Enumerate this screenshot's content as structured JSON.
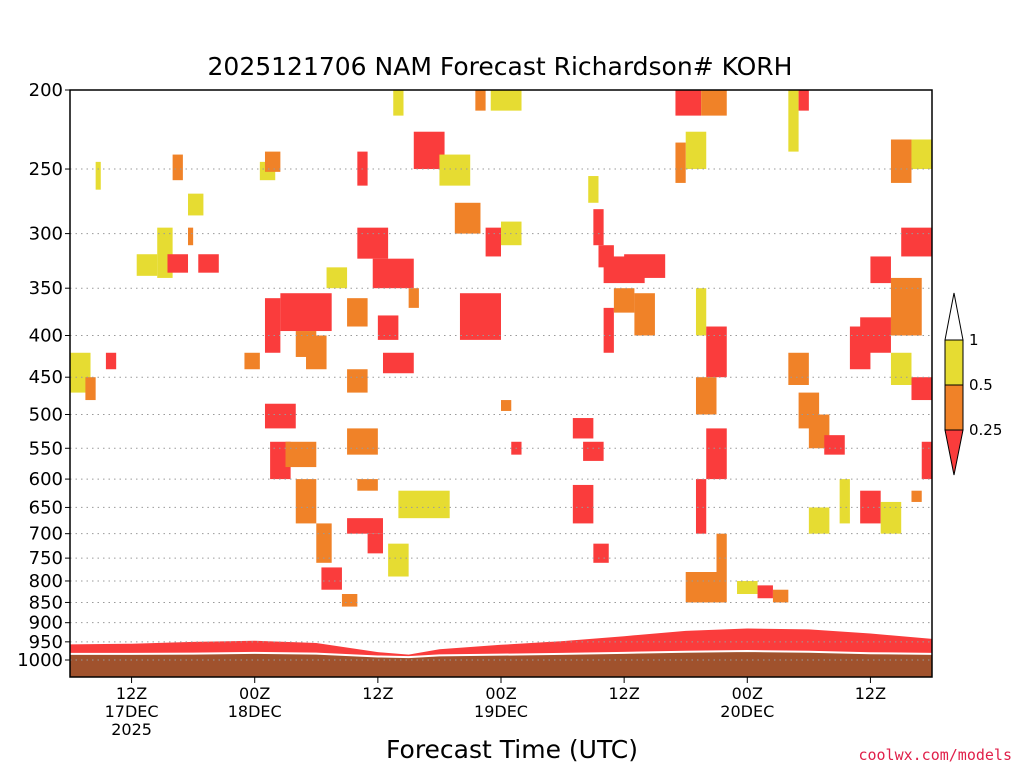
{
  "chart_data": {
    "type": "heatmap",
    "title": "2025121706 NAM Forecast Richardson# KORH",
    "xlabel": "Forecast Time (UTC)",
    "ylabel": "",
    "credit": "coolwx.com/models",
    "x_range_hours": [
      0,
      84
    ],
    "y_range_hpa": [
      1000,
      200
    ],
    "y_scale": "log",
    "y_ticks": [
      200,
      250,
      300,
      350,
      400,
      450,
      500,
      550,
      600,
      650,
      700,
      750,
      800,
      850,
      900,
      950,
      1000
    ],
    "y_tick_labels": [
      "200",
      "250",
      "300",
      "350",
      "400",
      "450",
      "500",
      "550",
      "600",
      "650",
      "700",
      "750",
      "800",
      "850",
      "900",
      "950",
      "1000"
    ],
    "x_ticks": [
      {
        "hour": 6,
        "lines": [
          "12Z",
          "17DEC",
          "2025"
        ]
      },
      {
        "hour": 18,
        "lines": [
          "00Z",
          "18DEC"
        ]
      },
      {
        "hour": 30,
        "lines": [
          "12Z"
        ]
      },
      {
        "hour": 42,
        "lines": [
          "00Z",
          "19DEC"
        ]
      },
      {
        "hour": 54,
        "lines": [
          "12Z"
        ]
      },
      {
        "hour": 66,
        "lines": [
          "00Z",
          "20DEC"
        ]
      },
      {
        "hour": 78,
        "lines": [
          "12Z"
        ]
      }
    ],
    "grid": "dotted horizontal",
    "legend_position": "right",
    "colorbar": {
      "labels": [
        "1",
        "0.5",
        "0.25"
      ],
      "bins": [
        {
          "range": "0.5-1",
          "color": "#e6dc32"
        },
        {
          "range": "0.25-0.5",
          "color": "#f08228"
        },
        {
          "range": "<0.25",
          "color": "#fa3c3c"
        }
      ],
      "above_color": "#ffffff"
    },
    "colors": {
      "yellow": "#e6dc32",
      "orange": "#f08228",
      "red": "#fa3c3c",
      "ground": "#a0522d"
    },
    "surface_pressure": {
      "hours": [
        0,
        6,
        12,
        18,
        24,
        30,
        33,
        36,
        42,
        48,
        54,
        60,
        66,
        72,
        78,
        84
      ],
      "hpa": [
        957,
        955,
        950,
        947,
        953,
        978,
        985,
        970,
        958,
        948,
        935,
        921,
        915,
        917,
        928,
        942
      ]
    },
    "ground_top_hpa": [
      983,
      983,
      982,
      980,
      982,
      990,
      992,
      987,
      985,
      983,
      980,
      977,
      975,
      977,
      981,
      983
    ],
    "cells": [
      {
        "h0": 0,
        "h1": 2,
        "p0": 420,
        "p1": 470,
        "c": "yellow"
      },
      {
        "h0": 1.5,
        "h1": 2.5,
        "p0": 450,
        "p1": 480,
        "c": "orange"
      },
      {
        "h0": 3.5,
        "h1": 4.5,
        "p0": 420,
        "p1": 440,
        "c": "red"
      },
      {
        "h0": 2.5,
        "h1": 3,
        "p0": 245,
        "p1": 265,
        "c": "yellow"
      },
      {
        "h0": 6.5,
        "h1": 8.5,
        "p0": 318,
        "p1": 338,
        "c": "yellow"
      },
      {
        "h0": 8.5,
        "h1": 10,
        "p0": 295,
        "p1": 340,
        "c": "yellow"
      },
      {
        "h0": 9.5,
        "h1": 11.5,
        "p0": 318,
        "p1": 335,
        "c": "red"
      },
      {
        "h0": 10,
        "h1": 11,
        "p0": 240,
        "p1": 258,
        "c": "orange"
      },
      {
        "h0": 11.5,
        "h1": 12,
        "p0": 295,
        "p1": 310,
        "c": "orange"
      },
      {
        "h0": 12.5,
        "h1": 14.5,
        "p0": 318,
        "p1": 335,
        "c": "red"
      },
      {
        "h0": 11.5,
        "h1": 13,
        "p0": 268,
        "p1": 285,
        "c": "yellow"
      },
      {
        "h0": 17,
        "h1": 18.5,
        "p0": 420,
        "p1": 440,
        "c": "orange"
      },
      {
        "h0": 18.5,
        "h1": 20,
        "p0": 245,
        "p1": 258,
        "c": "yellow"
      },
      {
        "h0": 19,
        "h1": 20.5,
        "p0": 238,
        "p1": 252,
        "c": "orange"
      },
      {
        "h0": 19,
        "h1": 20.5,
        "p0": 360,
        "p1": 420,
        "c": "red"
      },
      {
        "h0": 20.5,
        "h1": 25.5,
        "p0": 355,
        "p1": 395,
        "c": "red"
      },
      {
        "h0": 22,
        "h1": 24,
        "p0": 395,
        "p1": 425,
        "c": "orange"
      },
      {
        "h0": 23,
        "h1": 25,
        "p0": 400,
        "p1": 440,
        "c": "orange"
      },
      {
        "h0": 19,
        "h1": 22,
        "p0": 485,
        "p1": 520,
        "c": "red"
      },
      {
        "h0": 19.5,
        "h1": 21.5,
        "p0": 540,
        "p1": 600,
        "c": "red"
      },
      {
        "h0": 21,
        "h1": 24,
        "p0": 540,
        "p1": 580,
        "c": "orange"
      },
      {
        "h0": 22,
        "h1": 24,
        "p0": 600,
        "p1": 680,
        "c": "orange"
      },
      {
        "h0": 24,
        "h1": 25.5,
        "p0": 680,
        "p1": 760,
        "c": "orange"
      },
      {
        "h0": 24.5,
        "h1": 26.5,
        "p0": 770,
        "p1": 820,
        "c": "red"
      },
      {
        "h0": 26.5,
        "h1": 28,
        "p0": 830,
        "p1": 860,
        "c": "orange"
      },
      {
        "h0": 25,
        "h1": 27,
        "p0": 330,
        "p1": 350,
        "c": "yellow"
      },
      {
        "h0": 27,
        "h1": 29,
        "p0": 360,
        "p1": 390,
        "c": "orange"
      },
      {
        "h0": 28,
        "h1": 29,
        "p0": 238,
        "p1": 262,
        "c": "red"
      },
      {
        "h0": 27,
        "h1": 29,
        "p0": 440,
        "p1": 470,
        "c": "orange"
      },
      {
        "h0": 27,
        "h1": 30,
        "p0": 520,
        "p1": 560,
        "c": "orange"
      },
      {
        "h0": 27,
        "h1": 30.5,
        "p0": 670,
        "p1": 700,
        "c": "red"
      },
      {
        "h0": 28,
        "h1": 30,
        "p0": 600,
        "p1": 620,
        "c": "orange"
      },
      {
        "h0": 28,
        "h1": 31,
        "p0": 295,
        "p1": 322,
        "c": "red"
      },
      {
        "h0": 29.5,
        "h1": 33.5,
        "p0": 322,
        "p1": 350,
        "c": "red"
      },
      {
        "h0": 30,
        "h1": 32,
        "p0": 378,
        "p1": 405,
        "c": "red"
      },
      {
        "h0": 30.5,
        "h1": 33.5,
        "p0": 420,
        "p1": 445,
        "c": "red"
      },
      {
        "h0": 29,
        "h1": 30.5,
        "p0": 700,
        "p1": 740,
        "c": "red"
      },
      {
        "h0": 32,
        "h1": 37,
        "p0": 620,
        "p1": 670,
        "c": "yellow"
      },
      {
        "h0": 31,
        "h1": 33,
        "p0": 720,
        "p1": 790,
        "c": "yellow"
      },
      {
        "h0": 31.5,
        "h1": 32.5,
        "p0": 199,
        "p1": 215,
        "c": "yellow"
      },
      {
        "h0": 33.5,
        "h1": 36.5,
        "p0": 225,
        "p1": 250,
        "c": "red"
      },
      {
        "h0": 36,
        "h1": 39,
        "p0": 240,
        "p1": 262,
        "c": "yellow"
      },
      {
        "h0": 37.5,
        "h1": 40,
        "p0": 275,
        "p1": 300,
        "c": "orange"
      },
      {
        "h0": 38,
        "h1": 42,
        "p0": 355,
        "p1": 405,
        "c": "red"
      },
      {
        "h0": 33,
        "h1": 34,
        "p0": 350,
        "p1": 370,
        "c": "orange"
      },
      {
        "h0": 40.5,
        "h1": 42,
        "p0": 295,
        "p1": 320,
        "c": "red"
      },
      {
        "h0": 39.5,
        "h1": 40.5,
        "p0": 199,
        "p1": 212,
        "c": "orange"
      },
      {
        "h0": 41,
        "h1": 44,
        "p0": 199,
        "p1": 212,
        "c": "yellow"
      },
      {
        "h0": 42,
        "h1": 44,
        "p0": 290,
        "p1": 310,
        "c": "yellow"
      },
      {
        "h0": 42,
        "h1": 43,
        "p0": 480,
        "p1": 495,
        "c": "orange"
      },
      {
        "h0": 43,
        "h1": 44,
        "p0": 540,
        "p1": 560,
        "c": "red"
      },
      {
        "h0": 49,
        "h1": 51,
        "p0": 505,
        "p1": 535,
        "c": "red"
      },
      {
        "h0": 50,
        "h1": 52,
        "p0": 540,
        "p1": 570,
        "c": "red"
      },
      {
        "h0": 49,
        "h1": 51,
        "p0": 610,
        "p1": 680,
        "c": "red"
      },
      {
        "h0": 51,
        "h1": 52.5,
        "p0": 720,
        "p1": 760,
        "c": "red"
      },
      {
        "h0": 51,
        "h1": 52,
        "p0": 280,
        "p1": 310,
        "c": "red"
      },
      {
        "h0": 50.5,
        "h1": 51.5,
        "p0": 255,
        "p1": 275,
        "c": "yellow"
      },
      {
        "h0": 51.5,
        "h1": 53,
        "p0": 310,
        "p1": 330,
        "c": "red"
      },
      {
        "h0": 52,
        "h1": 53,
        "p0": 370,
        "p1": 420,
        "c": "red"
      },
      {
        "h0": 52,
        "h1": 56,
        "p0": 320,
        "p1": 345,
        "c": "red"
      },
      {
        "h0": 54,
        "h1": 58,
        "p0": 318,
        "p1": 340,
        "c": "red"
      },
      {
        "h0": 53,
        "h1": 55,
        "p0": 350,
        "p1": 375,
        "c": "orange"
      },
      {
        "h0": 55,
        "h1": 57,
        "p0": 355,
        "p1": 400,
        "c": "orange"
      },
      {
        "h0": 59,
        "h1": 61.5,
        "p0": 199,
        "p1": 215,
        "c": "red"
      },
      {
        "h0": 61.5,
        "h1": 64,
        "p0": 199,
        "p1": 215,
        "c": "orange"
      },
      {
        "h0": 60,
        "h1": 62,
        "p0": 225,
        "p1": 250,
        "c": "yellow"
      },
      {
        "h0": 59,
        "h1": 60,
        "p0": 232,
        "p1": 260,
        "c": "orange"
      },
      {
        "h0": 61,
        "h1": 62,
        "p0": 350,
        "p1": 400,
        "c": "yellow"
      },
      {
        "h0": 62,
        "h1": 64,
        "p0": 390,
        "p1": 450,
        "c": "red"
      },
      {
        "h0": 61,
        "h1": 63,
        "p0": 450,
        "p1": 500,
        "c": "orange"
      },
      {
        "h0": 62,
        "h1": 64,
        "p0": 520,
        "p1": 600,
        "c": "red"
      },
      {
        "h0": 61,
        "h1": 62,
        "p0": 600,
        "p1": 700,
        "c": "red"
      },
      {
        "h0": 63,
        "h1": 64,
        "p0": 700,
        "p1": 780,
        "c": "orange"
      },
      {
        "h0": 60,
        "h1": 64,
        "p0": 780,
        "p1": 850,
        "c": "orange"
      },
      {
        "h0": 65,
        "h1": 67,
        "p0": 800,
        "p1": 830,
        "c": "yellow"
      },
      {
        "h0": 67,
        "h1": 68.5,
        "p0": 810,
        "p1": 840,
        "c": "red"
      },
      {
        "h0": 68.5,
        "h1": 70,
        "p0": 820,
        "p1": 850,
        "c": "orange"
      },
      {
        "h0": 70,
        "h1": 71,
        "p0": 199,
        "p1": 238,
        "c": "yellow"
      },
      {
        "h0": 71,
        "h1": 72,
        "p0": 199,
        "p1": 212,
        "c": "red"
      },
      {
        "h0": 70,
        "h1": 72,
        "p0": 420,
        "p1": 460,
        "c": "orange"
      },
      {
        "h0": 71,
        "h1": 73,
        "p0": 470,
        "p1": 520,
        "c": "orange"
      },
      {
        "h0": 72,
        "h1": 74,
        "p0": 500,
        "p1": 550,
        "c": "orange"
      },
      {
        "h0": 72,
        "h1": 74,
        "p0": 650,
        "p1": 700,
        "c": "yellow"
      },
      {
        "h0": 75,
        "h1": 76,
        "p0": 600,
        "p1": 680,
        "c": "yellow"
      },
      {
        "h0": 73.5,
        "h1": 75.5,
        "p0": 530,
        "p1": 560,
        "c": "red"
      },
      {
        "h0": 76,
        "h1": 78,
        "p0": 390,
        "p1": 440,
        "c": "red"
      },
      {
        "h0": 77,
        "h1": 80,
        "p0": 380,
        "p1": 420,
        "c": "red"
      },
      {
        "h0": 78,
        "h1": 80,
        "p0": 320,
        "p1": 345,
        "c": "red"
      },
      {
        "h0": 80,
        "h1": 83,
        "p0": 340,
        "p1": 400,
        "c": "orange"
      },
      {
        "h0": 81,
        "h1": 84,
        "p0": 295,
        "p1": 320,
        "c": "red"
      },
      {
        "h0": 80,
        "h1": 82,
        "p0": 230,
        "p1": 260,
        "c": "orange"
      },
      {
        "h0": 82,
        "h1": 84,
        "p0": 230,
        "p1": 250,
        "c": "yellow"
      },
      {
        "h0": 82,
        "h1": 84,
        "p0": 450,
        "p1": 480,
        "c": "red"
      },
      {
        "h0": 80,
        "h1": 82,
        "p0": 420,
        "p1": 460,
        "c": "yellow"
      },
      {
        "h0": 83,
        "h1": 84,
        "p0": 540,
        "p1": 600,
        "c": "red"
      },
      {
        "h0": 82,
        "h1": 83,
        "p0": 620,
        "p1": 640,
        "c": "orange"
      },
      {
        "h0": 77,
        "h1": 79,
        "p0": 620,
        "p1": 680,
        "c": "red"
      },
      {
        "h0": 79,
        "h1": 81,
        "p0": 640,
        "p1": 700,
        "c": "yellow"
      }
    ]
  }
}
